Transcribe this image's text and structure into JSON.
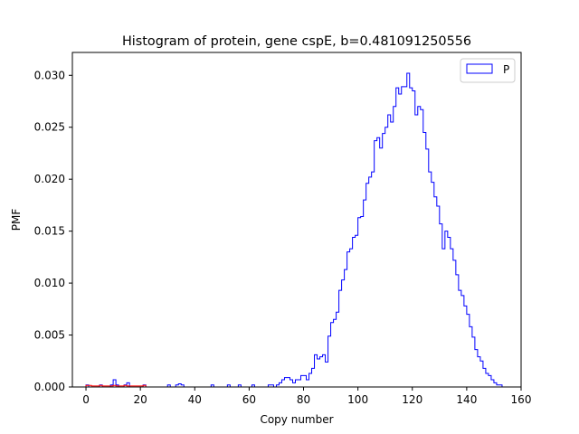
{
  "chart_data": {
    "type": "histogram",
    "title": "Histogram of protein, gene cspE, b=0.481091250556",
    "xlabel": "Copy number",
    "ylabel": "PMF",
    "xlim": [
      -5,
      160
    ],
    "ylim": [
      0,
      0.0322
    ],
    "xticks": [
      0,
      20,
      40,
      60,
      80,
      100,
      120,
      140,
      160
    ],
    "xtick_labels": [
      "0",
      "20",
      "40",
      "60",
      "80",
      "100",
      "120",
      "140",
      "160"
    ],
    "yticks": [
      0.0,
      0.005,
      0.01,
      0.015,
      0.02,
      0.025,
      0.03
    ],
    "ytick_labels": [
      "0.000",
      "0.005",
      "0.010",
      "0.015",
      "0.020",
      "0.025",
      "0.030"
    ],
    "grid": false,
    "legend": {
      "position": "top-right",
      "entries": [
        "P"
      ]
    },
    "series": [
      {
        "name": "P",
        "style": "step",
        "color": "#0000ff",
        "bin_width": 1,
        "bin_start": 0,
        "values": [
          0.0002,
          0,
          0,
          0,
          0,
          0.0002,
          0,
          0,
          0,
          0.0002,
          0.0007,
          0.0002,
          0,
          0,
          0.0002,
          0.0004,
          0,
          0,
          0,
          0,
          0,
          0.0002,
          0,
          0,
          0,
          0,
          0,
          0,
          0,
          0,
          0.0002,
          0,
          0,
          0.0002,
          0.0003,
          0.0002,
          0,
          0,
          0,
          0,
          0,
          0,
          0,
          0,
          0,
          0,
          0.0002,
          0,
          0,
          0,
          0,
          0,
          0.0002,
          0,
          0,
          0,
          0.0002,
          0,
          0,
          0,
          0,
          0.0002,
          0,
          0,
          0,
          0,
          0,
          0.0002,
          0.0002,
          0,
          0.0002,
          0.0004,
          0.0007,
          0.0009,
          0.0009,
          0.0007,
          0.0004,
          0.0007,
          0.0007,
          0.0011,
          0.0011,
          0.0007,
          0.0013,
          0.0018,
          0.0031,
          0.0027,
          0.0029,
          0.0031,
          0.0024,
          0.0049,
          0.0062,
          0.0065,
          0.0072,
          0.0093,
          0.0103,
          0.0113,
          0.013,
          0.0133,
          0.0144,
          0.0146,
          0.0163,
          0.0164,
          0.018,
          0.0196,
          0.0202,
          0.0207,
          0.0237,
          0.024,
          0.023,
          0.0244,
          0.025,
          0.0262,
          0.0255,
          0.027,
          0.0288,
          0.0282,
          0.0289,
          0.0289,
          0.0302,
          0.0288,
          0.0285,
          0.0262,
          0.027,
          0.0267,
          0.0245,
          0.0229,
          0.0207,
          0.0197,
          0.0183,
          0.0174,
          0.0157,
          0.0133,
          0.015,
          0.0144,
          0.0133,
          0.0122,
          0.0108,
          0.0093,
          0.0088,
          0.0078,
          0.007,
          0.0058,
          0.0048,
          0.0036,
          0.0029,
          0.0025,
          0.0018,
          0.0013,
          0.0011,
          0.0007,
          0.0004,
          0.0002,
          0.0002,
          0,
          0
        ]
      },
      {
        "name": "",
        "style": "step",
        "color": "#ff0000",
        "bin_width": 1,
        "bin_start": 0,
        "values": [
          0.00015,
          0.00015,
          0.0001,
          0.0001,
          0.0001,
          0.00015,
          0.0001,
          0.0001,
          0.0001,
          0.0001,
          0.00015,
          0.0001,
          0.0001,
          0.0001,
          0.00015,
          0.0001,
          0.0001,
          0.0001,
          0.0001,
          0.0001,
          0.0001,
          0.00015
        ]
      }
    ]
  }
}
